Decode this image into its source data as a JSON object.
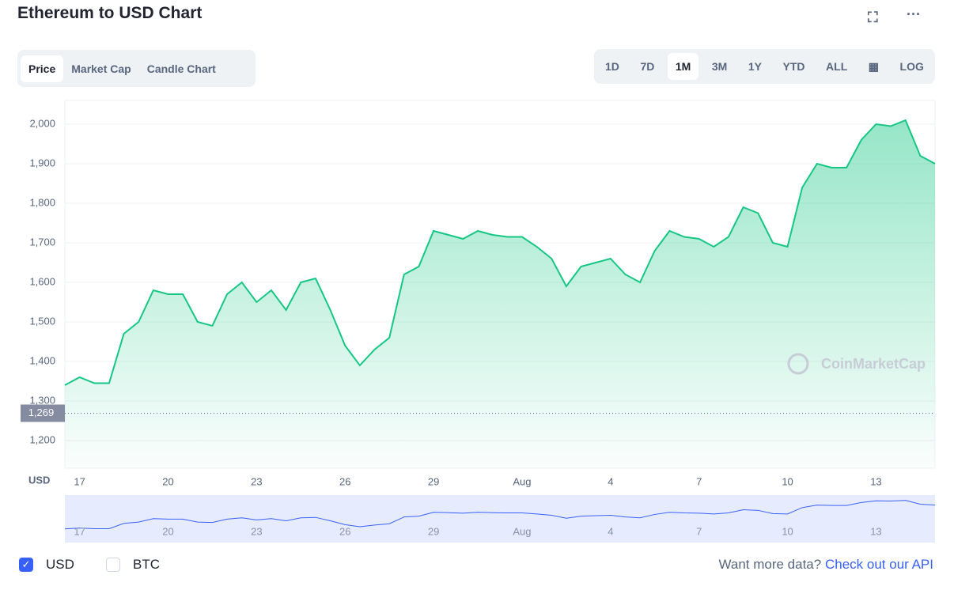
{
  "header": {
    "title": "Ethereum to USD Chart"
  },
  "tabs": {
    "items": [
      "Price",
      "Market Cap",
      "Candle Chart"
    ],
    "active": 0
  },
  "ranges": {
    "items": [
      "1D",
      "7D",
      "1M",
      "3M",
      "1Y",
      "YTD",
      "ALL"
    ],
    "active": 2,
    "log": "LOG"
  },
  "chart_data": {
    "type": "area",
    "y_axis_label": "USD",
    "watermark": "CoinMarketCap",
    "categories": [
      null,
      "17",
      null,
      null,
      null,
      null,
      null,
      "20",
      null,
      null,
      null,
      null,
      null,
      "23",
      null,
      null,
      null,
      null,
      null,
      "26",
      null,
      null,
      null,
      null,
      null,
      "29",
      null,
      null,
      null,
      null,
      null,
      "Aug",
      null,
      null,
      null,
      null,
      null,
      "4",
      null,
      null,
      null,
      null,
      null,
      "7",
      null,
      null,
      null,
      null,
      null,
      "10",
      null,
      null,
      null,
      null,
      null,
      "13",
      null,
      null,
      null,
      null
    ],
    "series": [
      {
        "color": "#16c784",
        "values": [
          1340,
          1360,
          1345,
          1345,
          1470,
          1500,
          1580,
          1570,
          1570,
          1500,
          1490,
          1570,
          1600,
          1550,
          1580,
          1530,
          1600,
          1610,
          1530,
          1440,
          1390,
          1430,
          1460,
          1620,
          1640,
          1730,
          1720,
          1710,
          1730,
          1720,
          1715,
          1715,
          1690,
          1660,
          1590,
          1640,
          1650,
          1660,
          1620,
          1600,
          1680,
          1730,
          1715,
          1710,
          1690,
          1715,
          1790,
          1775,
          1700,
          1690,
          1840,
          1900,
          1890,
          1890,
          1960,
          2000,
          1995,
          2010,
          1920,
          1900
        ]
      }
    ],
    "ylim": [
      1130,
      2060
    ],
    "yticks": [
      {
        "value": 1200,
        "label": "1,200"
      },
      {
        "value": 1300,
        "label": "1,300"
      },
      {
        "value": 1400,
        "label": "1,400"
      },
      {
        "value": 1500,
        "label": "1,500"
      },
      {
        "value": 1600,
        "label": "1,600"
      },
      {
        "value": 1700,
        "label": "1,700"
      },
      {
        "value": 1800,
        "label": "1,800"
      },
      {
        "value": 1900,
        "label": "1,900"
      },
      {
        "value": 2000,
        "label": "2,000"
      }
    ],
    "reference": {
      "value": 1269,
      "label": "1,269"
    },
    "grid": true
  },
  "toggles": [
    {
      "label": "USD",
      "checked": true
    },
    {
      "label": "BTC",
      "checked": false
    }
  ],
  "footer": {
    "text": "Want more data?",
    "link": "Check out our API"
  }
}
